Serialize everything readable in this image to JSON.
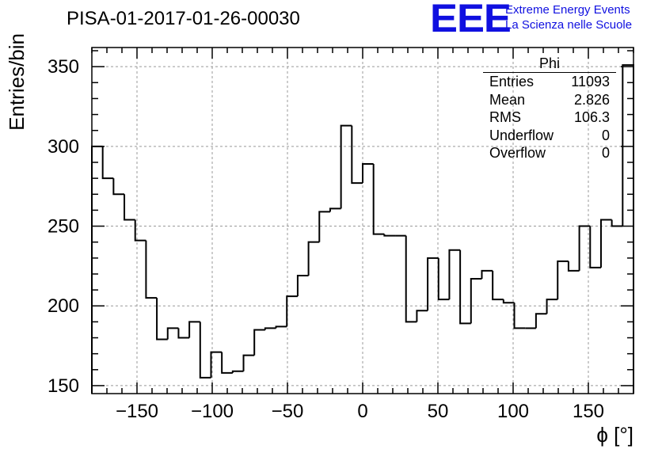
{
  "header": {
    "title": "PISA-01-2017-01-26-00030",
    "logo_text": "EEE",
    "logo_line1": "Extreme Energy Events",
    "logo_line2": "La Scienza nelle Scuole"
  },
  "stats_box": {
    "title": "Phi",
    "rows": [
      {
        "label": "Entries",
        "value": "11093"
      },
      {
        "label": "Mean",
        "value": "2.826"
      },
      {
        "label": "RMS",
        "value": "106.3"
      },
      {
        "label": "Underflow",
        "value": "0"
      },
      {
        "label": "Overflow",
        "value": "0"
      }
    ]
  },
  "colors": {
    "histogram": "#000000",
    "grid": "#999999",
    "logo": "#1010e0"
  },
  "chart_data": {
    "type": "bar",
    "histogram_style": "step",
    "title": "PISA-01-2017-01-26-00030",
    "xlabel": "ϕ [°]",
    "ylabel": "Entries/bin",
    "xlim": [
      -180,
      180
    ],
    "ylim": [
      145,
      362
    ],
    "grid": true,
    "bin_width": 7.2,
    "x_ticks": [
      -150,
      -100,
      -50,
      0,
      50,
      100,
      150
    ],
    "y_ticks": [
      150,
      200,
      250,
      300,
      350
    ],
    "values": [
      300,
      280,
      270,
      254,
      241,
      205,
      179,
      186,
      180,
      190,
      155,
      171,
      158,
      159,
      169,
      185,
      186,
      187,
      206,
      219,
      240,
      259,
      261,
      313,
      277,
      289,
      245,
      244,
      244,
      190,
      197,
      230,
      204,
      235,
      189,
      217,
      222,
      204,
      202,
      186,
      186,
      195,
      204,
      228,
      222,
      250,
      224,
      254,
      250,
      351
    ]
  }
}
